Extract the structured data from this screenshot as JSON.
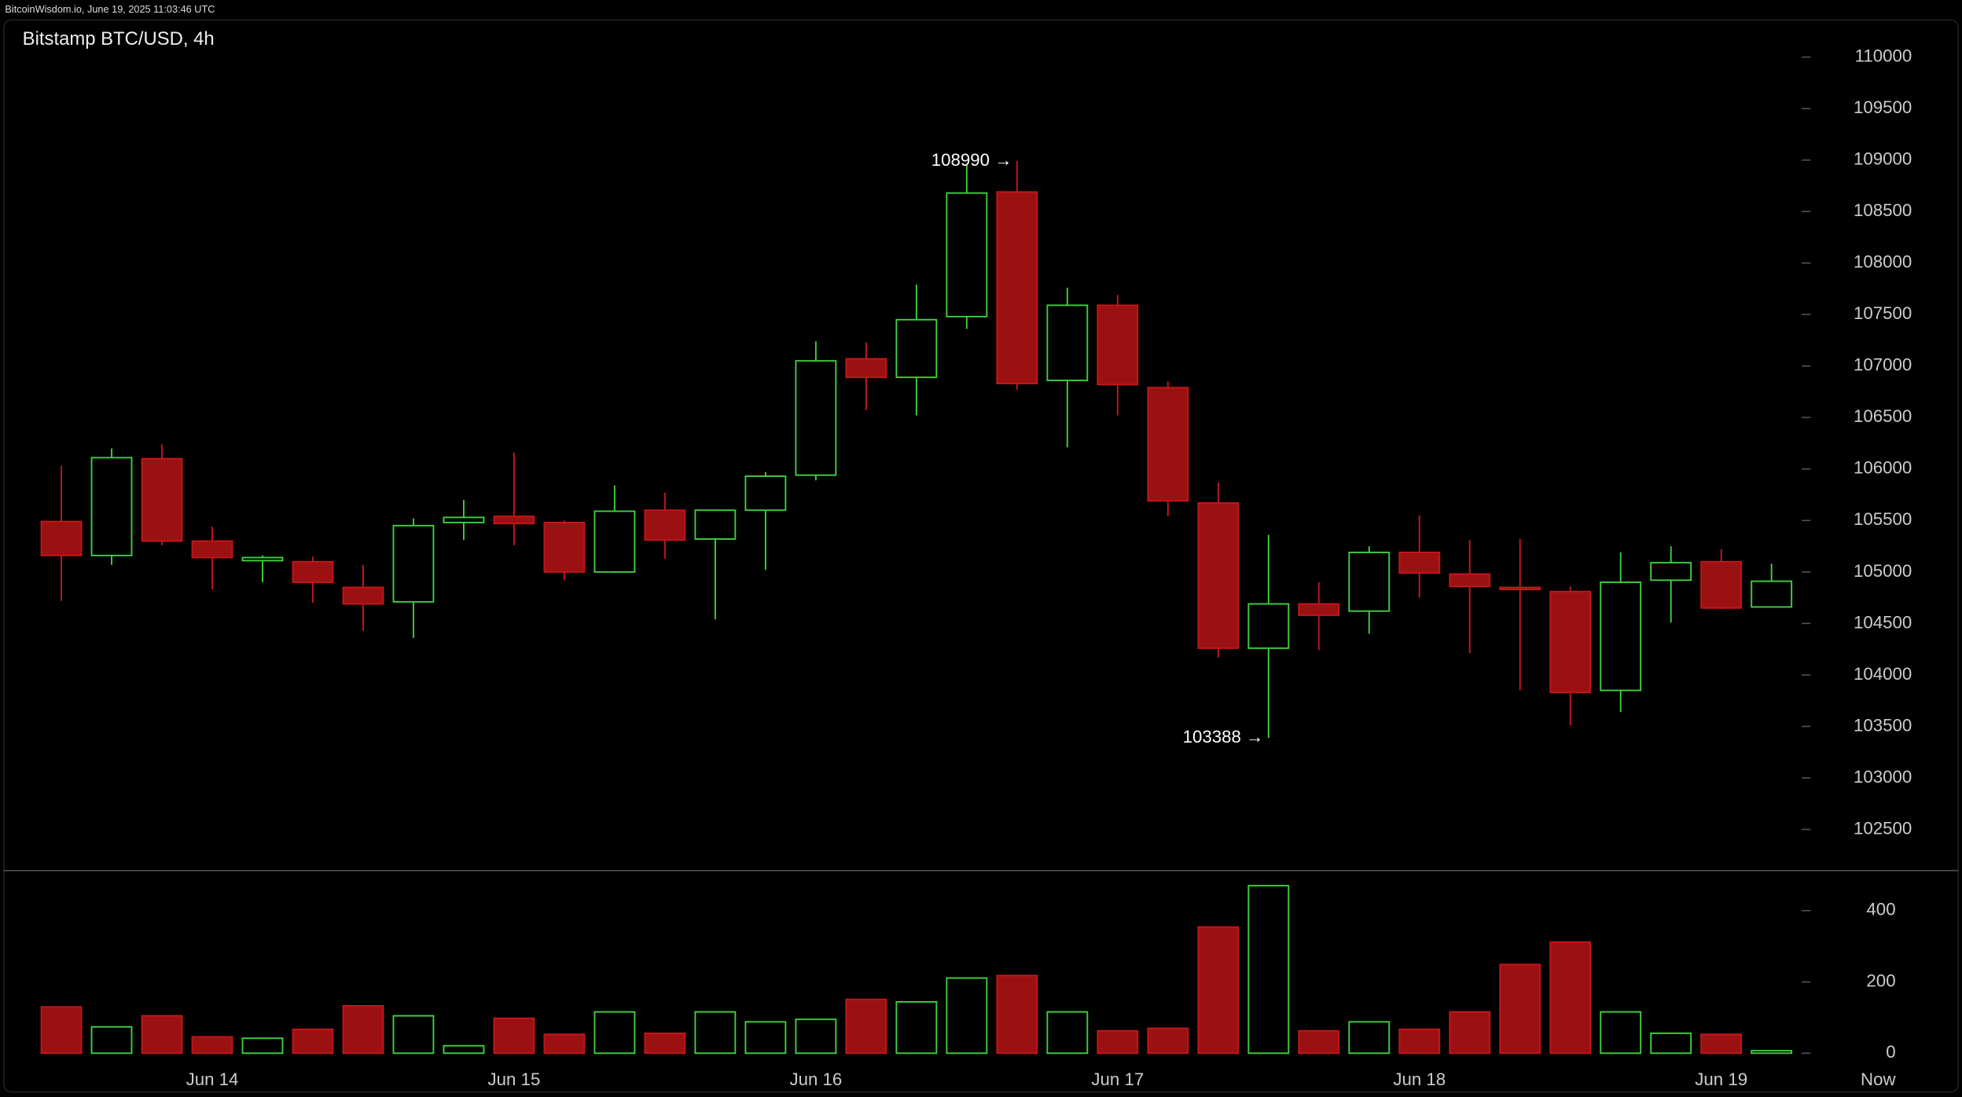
{
  "header": "BitcoinWisdom.io, June 19, 2025 11:03:46 UTC",
  "chart_data": [
    {
      "type": "candlestick",
      "title": "Bitstamp BTC/USD, 4h",
      "categories": [
        null,
        null,
        null,
        "Jun 14",
        null,
        null,
        null,
        null,
        null,
        "Jun 15",
        null,
        null,
        null,
        null,
        null,
        "Jun 16",
        null,
        null,
        null,
        null,
        null,
        "Jun 17",
        null,
        null,
        null,
        null,
        null,
        "Jun 18",
        null,
        null,
        null,
        null,
        null,
        "Jun 19",
        null
      ],
      "x_end_label": "Now",
      "open": [
        105490,
        105160,
        106100,
        105300,
        105110,
        105100,
        104850,
        104710,
        105480,
        105540,
        105480,
        105000,
        105600,
        105320,
        105600,
        105940,
        107070,
        106890,
        107480,
        108690,
        106860,
        107590,
        106790,
        105670,
        104260,
        104690,
        104620,
        105190,
        104980,
        104850,
        104810,
        103850,
        104920,
        105100,
        104660
      ],
      "high": [
        106030,
        106200,
        106240,
        105440,
        105160,
        105150,
        105070,
        105520,
        105700,
        106160,
        105500,
        105840,
        105770,
        105600,
        105970,
        107240,
        107230,
        107790,
        108950,
        108990,
        107760,
        107690,
        106850,
        105870,
        105360,
        104900,
        105250,
        105550,
        105310,
        105320,
        104860,
        105190,
        105250,
        105220,
        105080
      ],
      "low": [
        104720,
        105070,
        105260,
        104830,
        104900,
        104700,
        104430,
        104360,
        105310,
        105260,
        104920,
        104990,
        105130,
        104540,
        105020,
        105890,
        106570,
        106520,
        107360,
        106770,
        106210,
        106520,
        105540,
        104170,
        103388,
        104240,
        104400,
        104750,
        104210,
        103850,
        103510,
        103640,
        104510,
        104640,
        104660
      ],
      "close": [
        105160,
        106110,
        105300,
        105140,
        105140,
        104900,
        104690,
        105450,
        105530,
        105470,
        105000,
        105590,
        105310,
        105600,
        105930,
        107050,
        106890,
        107450,
        108680,
        106830,
        107590,
        106820,
        105690,
        104260,
        104690,
        104580,
        105190,
        104990,
        104860,
        104830,
        103830,
        104900,
        105090,
        104650,
        104910
      ],
      "up_color": "#3ecf3e",
      "down_color": "#9b1111",
      "ylim": [
        102100,
        110360
      ],
      "yticks": [
        102500,
        103000,
        103500,
        104000,
        104500,
        105000,
        105500,
        106000,
        106500,
        107000,
        107500,
        108000,
        108500,
        109000,
        109500,
        110000
      ],
      "annotations": [
        {
          "value": 108990,
          "label": "108990 →"
        },
        {
          "value": 103388,
          "label": "103388 →"
        }
      ]
    },
    {
      "type": "bar",
      "values": [
        130,
        74,
        105,
        46,
        42,
        67,
        133,
        105,
        21,
        98,
        53,
        116,
        56,
        116,
        88,
        95,
        151,
        144,
        211,
        218,
        116,
        63,
        70,
        354,
        470,
        63,
        88,
        67,
        116,
        249,
        312,
        116,
        56,
        53,
        7
      ],
      "ylim": [
        0,
        500
      ],
      "yticks": [
        0,
        200,
        400
      ]
    }
  ]
}
